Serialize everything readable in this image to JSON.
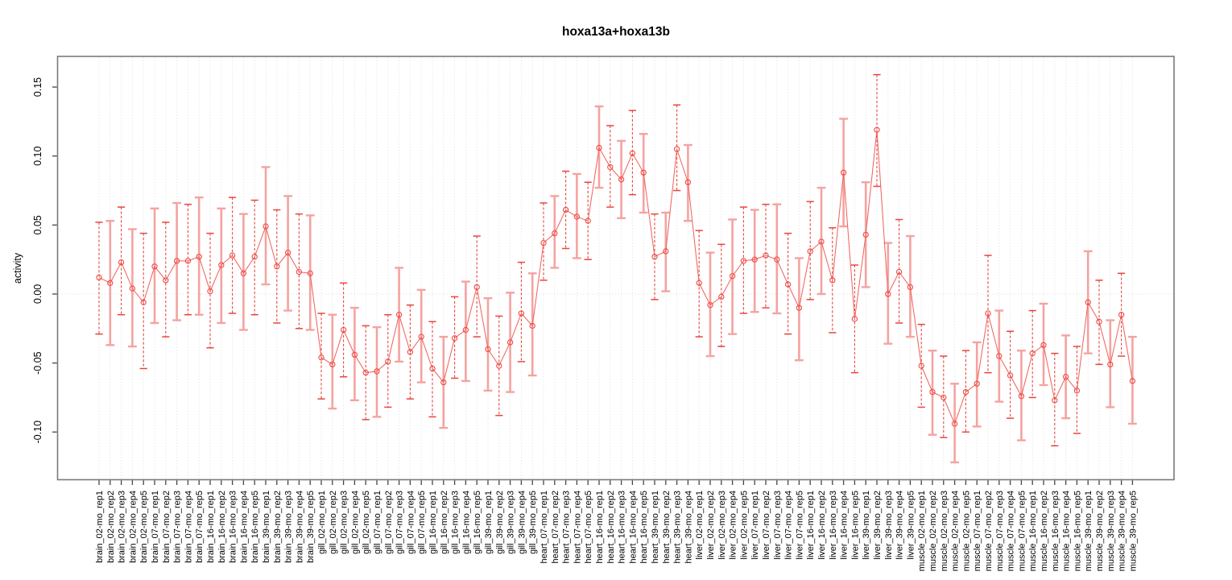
{
  "title": "hoxa13a+hoxa13b",
  "ylabel": "activity",
  "colors": {
    "point": "#ee4b44",
    "line": "#f0655f",
    "errorbar_dashed": "#e8453e",
    "errorbar_solid": "#f4a3a0",
    "grid": "#dcdcdc",
    "box": "#7a7a7a",
    "tick": "#444444"
  },
  "chart_data": {
    "type": "scatter",
    "title": "hoxa13a+hoxa13b",
    "xlabel": "",
    "ylabel": "activity",
    "ylim": [
      -0.135,
      0.172
    ],
    "y_ticks": [
      0.15,
      0.1,
      0.05,
      0.0,
      -0.05,
      -0.1
    ],
    "y_tick_labels": [
      "0.15",
      "0.10",
      "0.05",
      "0.00",
      "-0.05",
      "-0.10"
    ],
    "grid": "dotted vertical line per sample, dotted horizontal line at y=0",
    "legend": "none",
    "point_style": "open-circle",
    "error_bars": true,
    "categories": [
      "brain_02-mo_rep1",
      "brain_02-mo_rep2",
      "brain_02-mo_rep3",
      "brain_02-mo_rep4",
      "brain_02-mo_rep5",
      "brain_07-mo_rep1",
      "brain_07-mo_rep2",
      "brain_07-mo_rep3",
      "brain_07-mo_rep4",
      "brain_07-mo_rep5",
      "brain_16-mo_rep1",
      "brain_16-mo_rep2",
      "brain_16-mo_rep3",
      "brain_16-mo_rep4",
      "brain_16-mo_rep5",
      "brain_39-mo_rep1",
      "brain_39-mo_rep2",
      "brain_39-mo_rep3",
      "brain_39-mo_rep4",
      "brain_39-mo_rep5",
      "gill_02-mo_rep1",
      "gill_02-mo_rep2",
      "gill_02-mo_rep3",
      "gill_02-mo_rep4",
      "gill_02-mo_rep5",
      "gill_07-mo_rep1",
      "gill_07-mo_rep2",
      "gill_07-mo_rep3",
      "gill_07-mo_rep4",
      "gill_07-mo_rep5",
      "gill_16-mo_rep1",
      "gill_16-mo_rep2",
      "gill_16-mo_rep3",
      "gill_16-mo_rep4",
      "gill_16-mo_rep5",
      "gill_39-mo_rep1",
      "gill_39-mo_rep2",
      "gill_39-mo_rep3",
      "gill_39-mo_rep4",
      "gill_39-mo_rep5",
      "heart_07-mo_rep1",
      "heart_07-mo_rep2",
      "heart_07-mo_rep3",
      "heart_07-mo_rep4",
      "heart_07-mo_rep5",
      "heart_16-mo_rep1",
      "heart_16-mo_rep2",
      "heart_16-mo_rep3",
      "heart_16-mo_rep4",
      "heart_16-mo_rep5",
      "heart_39-mo_rep1",
      "heart_39-mo_rep2",
      "heart_39-mo_rep3",
      "heart_39-mo_rep4",
      "liver_02-mo_rep1",
      "liver_02-mo_rep2",
      "liver_02-mo_rep3",
      "liver_02-mo_rep4",
      "liver_02-mo_rep5",
      "liver_07-mo_rep1",
      "liver_07-mo_rep2",
      "liver_07-mo_rep3",
      "liver_07-mo_rep4",
      "liver_07-mo_rep5",
      "liver_16-mo_rep1",
      "liver_16-mo_rep2",
      "liver_16-mo_rep3",
      "liver_16-mo_rep4",
      "liver_16-mo_rep5",
      "liver_39-mo_rep1",
      "liver_39-mo_rep2",
      "liver_39-mo_rep3",
      "liver_39-mo_rep4",
      "liver_39-mo_rep5",
      "muscle_02-mo_rep1",
      "muscle_02-mo_rep2",
      "muscle_02-mo_rep3",
      "muscle_02-mo_rep4",
      "muscle_02-mo_rep5",
      "muscle_07-mo_rep1",
      "muscle_07-mo_rep2",
      "muscle_07-mo_rep3",
      "muscle_07-mo_rep4",
      "muscle_07-mo_rep5",
      "muscle_16-mo_rep1",
      "muscle_16-mo_rep2",
      "muscle_16-mo_rep3",
      "muscle_16-mo_rep4",
      "muscle_16-mo_rep5",
      "muscle_39-mo_rep1",
      "muscle_39-mo_rep2",
      "muscle_39-mo_rep3",
      "muscle_39-mo_rep4",
      "muscle_39-mo_rep5"
    ],
    "values": [
      0.012,
      0.008,
      0.023,
      0.004,
      -0.006,
      0.02,
      0.01,
      0.024,
      0.024,
      0.027,
      0.002,
      0.021,
      0.028,
      0.015,
      0.027,
      0.049,
      0.02,
      0.03,
      0.016,
      0.015,
      -0.046,
      -0.051,
      -0.026,
      -0.044,
      -0.057,
      -0.056,
      -0.049,
      -0.015,
      -0.042,
      -0.031,
      -0.054,
      -0.064,
      -0.032,
      -0.026,
      0.005,
      -0.04,
      -0.052,
      -0.035,
      -0.014,
      -0.023,
      0.037,
      0.044,
      0.061,
      0.056,
      0.053,
      0.106,
      0.092,
      0.083,
      0.102,
      0.088,
      0.027,
      0.031,
      0.105,
      0.081,
      0.008,
      -0.008,
      -0.002,
      0.013,
      0.024,
      0.025,
      0.028,
      0.025,
      0.007,
      -0.01,
      0.031,
      0.038,
      0.01,
      0.088,
      -0.018,
      0.043,
      0.119,
      0.0,
      0.016,
      0.005,
      -0.052,
      -0.071,
      -0.075,
      -0.094,
      -0.071,
      -0.065,
      -0.014,
      -0.045,
      -0.059,
      -0.074,
      -0.043,
      -0.037,
      -0.077,
      -0.06,
      -0.07,
      -0.006,
      -0.02,
      -0.051,
      -0.015,
      -0.063
    ],
    "lower": [
      -0.029,
      -0.037,
      -0.015,
      -0.038,
      -0.054,
      -0.021,
      -0.031,
      -0.019,
      -0.015,
      -0.015,
      -0.039,
      -0.021,
      -0.014,
      -0.026,
      -0.015,
      0.007,
      -0.021,
      -0.012,
      -0.025,
      -0.026,
      -0.076,
      -0.083,
      -0.06,
      -0.077,
      -0.091,
      -0.089,
      -0.082,
      -0.049,
      -0.076,
      -0.064,
      -0.089,
      -0.097,
      -0.061,
      -0.063,
      -0.031,
      -0.07,
      -0.088,
      -0.071,
      -0.049,
      -0.059,
      0.01,
      0.019,
      0.033,
      0.026,
      0.025,
      0.077,
      0.063,
      0.055,
      0.072,
      0.059,
      -0.004,
      0.002,
      0.075,
      0.053,
      -0.031,
      -0.045,
      -0.038,
      -0.029,
      -0.014,
      -0.013,
      -0.01,
      -0.014,
      -0.029,
      -0.048,
      -0.004,
      0.0,
      -0.028,
      0.049,
      -0.057,
      0.005,
      0.078,
      -0.036,
      -0.021,
      -0.031,
      -0.082,
      -0.102,
      -0.104,
      -0.122,
      -0.1,
      -0.096,
      -0.057,
      -0.078,
      -0.09,
      -0.106,
      -0.075,
      -0.066,
      -0.11,
      -0.09,
      -0.101,
      -0.043,
      -0.051,
      -0.082,
      -0.045,
      -0.094
    ],
    "upper": [
      0.052,
      0.053,
      0.063,
      0.047,
      0.044,
      0.062,
      0.052,
      0.066,
      0.065,
      0.07,
      0.044,
      0.062,
      0.07,
      0.058,
      0.068,
      0.092,
      0.061,
      0.071,
      0.058,
      0.057,
      -0.014,
      -0.015,
      0.008,
      -0.01,
      -0.023,
      -0.024,
      -0.015,
      0.019,
      -0.008,
      0.003,
      -0.02,
      -0.031,
      -0.002,
      0.009,
      0.042,
      -0.003,
      -0.016,
      0.001,
      0.023,
      0.015,
      0.066,
      0.071,
      0.089,
      0.087,
      0.081,
      0.136,
      0.122,
      0.111,
      0.133,
      0.116,
      0.058,
      0.059,
      0.137,
      0.108,
      0.046,
      0.03,
      0.036,
      0.054,
      0.063,
      0.061,
      0.065,
      0.065,
      0.044,
      0.026,
      0.067,
      0.077,
      0.048,
      0.127,
      0.021,
      0.081,
      0.159,
      0.037,
      0.054,
      0.042,
      -0.022,
      -0.041,
      -0.045,
      -0.065,
      -0.041,
      -0.035,
      0.028,
      -0.012,
      -0.027,
      -0.041,
      -0.012,
      -0.007,
      -0.043,
      -0.03,
      -0.038,
      0.031,
      0.01,
      -0.019,
      0.015,
      -0.031
    ]
  }
}
